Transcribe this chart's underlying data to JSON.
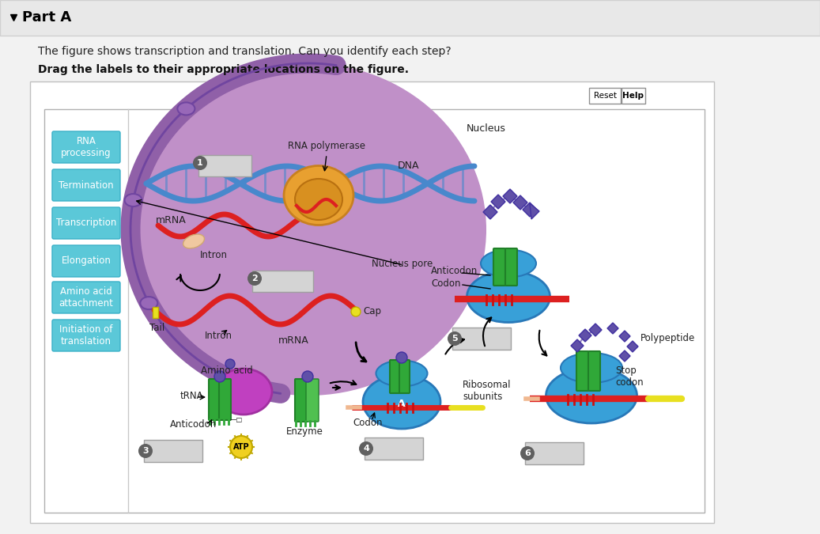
{
  "title": "Part A",
  "question_text": "The figure shows transcription and translation. Can you identify each step?",
  "instruction_text": "Drag the labels to their appropriate locations on the figure.",
  "left_labels": [
    "RNA\nprocessing",
    "Termination",
    "Transcription",
    "Elongation",
    "Amino acid\nattachment",
    "Initiation of\ntranslation"
  ],
  "left_label_color": "#5bc8d8",
  "left_label_border": "#3ab0c8",
  "bg_outer": "#f0f0f0",
  "nucleus_fill": "#c090c8",
  "nucleus_border": "#9060a8",
  "nuclear_env_fill": "#9060a8",
  "dna_color": "#4888cc",
  "mrna_color": "#dd2020",
  "polymerase_color": "#e8a030",
  "ribosome_color": "#38a0d8",
  "trna_color": "#38a838",
  "amino_acid_color": "#c040c0",
  "polypeptide_color": "#6050a8",
  "atp_color": "#f0d020",
  "cap_tail_color": "#e8e020",
  "empty_box_fill": "#d4d4d4",
  "empty_box_border": "#a0a0a0",
  "num_circle_fill": "#606060",
  "annotation_color": "#181818"
}
